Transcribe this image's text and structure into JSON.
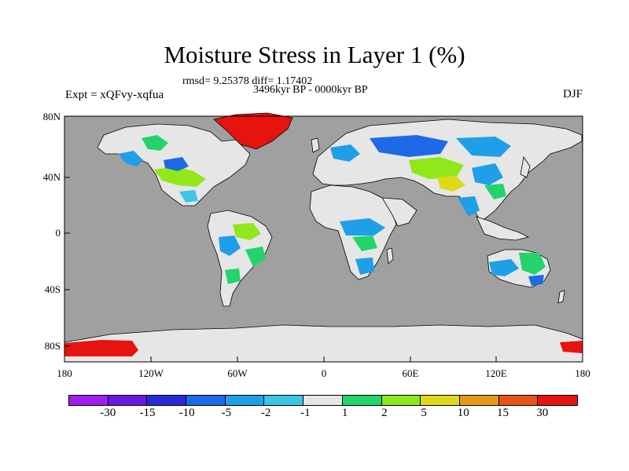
{
  "title": "Moisture Stress in Layer 1 (%)",
  "stats": "rmsd= 9.25378 diff= 1.17402",
  "period": "3496kyr BP - 0000kyr BP",
  "experiment": "Expt = xQFvy-xqfua",
  "season": "DJF",
  "axes": {
    "y_ticks": [
      "80N",
      "40N",
      "0",
      "40S",
      "80S"
    ],
    "x_ticks": [
      "180",
      "120W",
      "60W",
      "0",
      "60E",
      "120E",
      "180"
    ]
  },
  "colors": {
    "ocean": "#a0a0a0",
    "land": "#e6e6e6",
    "coast": "#000000"
  },
  "colorbar": {
    "colors": [
      "#9f1ff0",
      "#6a1ae0",
      "#2a2ad8",
      "#1d6ae6",
      "#1f9fe8",
      "#3cc6e6",
      "#e6e6e6",
      "#22d46a",
      "#8ee81a",
      "#e0d81a",
      "#e69a1a",
      "#e6561a",
      "#e6140f"
    ],
    "labels": [
      "-30",
      "-15",
      "-10",
      "-5",
      "-2",
      "-1",
      "1",
      "2",
      "5",
      "10",
      "15",
      "30"
    ]
  }
}
